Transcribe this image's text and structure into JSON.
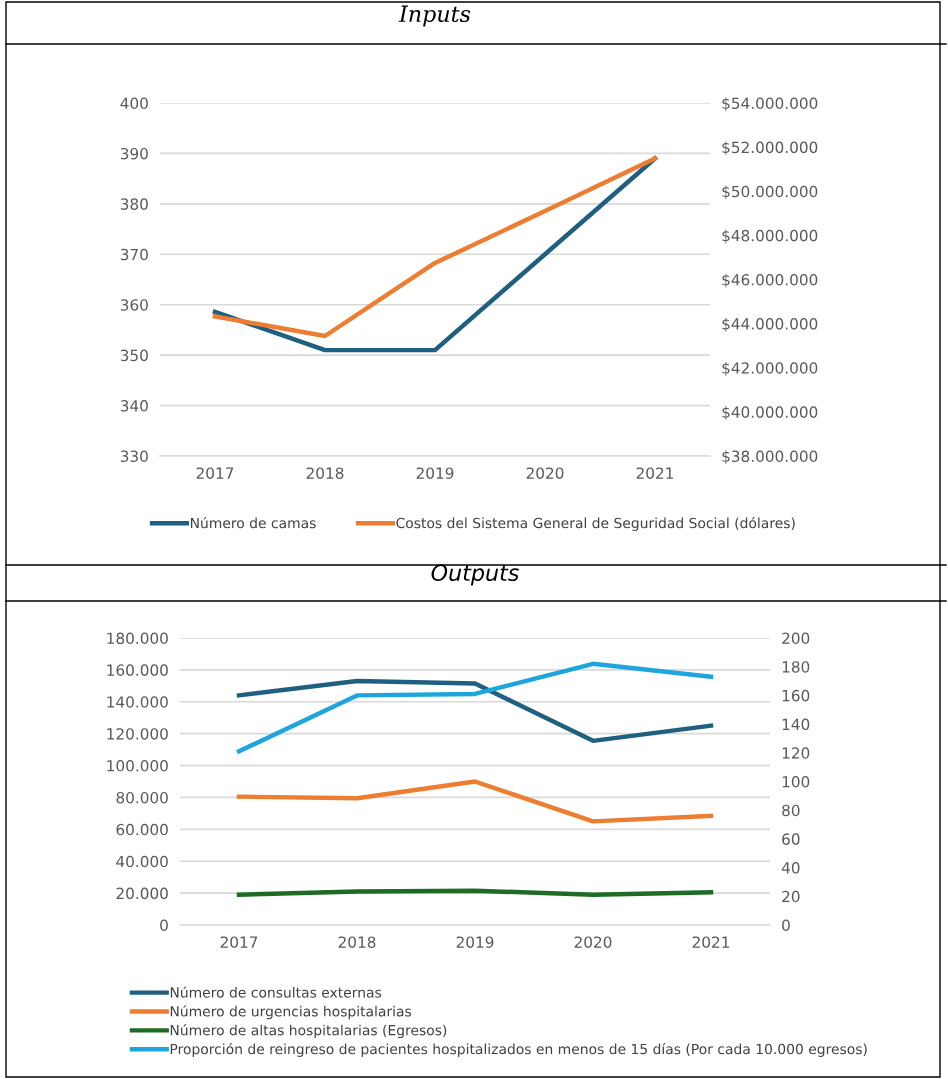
{
  "chart_data": [
    {
      "type": "line",
      "title": "Inputs",
      "categories": [
        "2017",
        "2018",
        "2019",
        "2020",
        "2021"
      ],
      "series": [
        {
          "name": "Número de camas",
          "color": "#1f5f7f",
          "values": [
            358.6,
            351,
            351,
            370,
            389
          ]
        },
        {
          "name": "Costos del Sistema General de Seguridad Social (dólares)",
          "color": "#ed7d31",
          "axis": "y2",
          "values": [
            44330000,
            43440000,
            46750000,
            49100000,
            51490000
          ]
        }
      ],
      "ylim": [
        330,
        400
      ],
      "yticks": [
        330,
        340,
        350,
        360,
        370,
        380,
        390,
        400
      ],
      "y2lim": [
        38000000,
        54000000
      ],
      "y2ticks": [
        {
          "value": 38000000,
          "label": "$38.000.000"
        },
        {
          "value": 40000000,
          "label": "$40.000.000"
        },
        {
          "value": 42000000,
          "label": "$42.000.000"
        },
        {
          "value": 44000000,
          "label": "$44.000.000"
        },
        {
          "value": 46000000,
          "label": "$46.000.000"
        },
        {
          "value": 48000000,
          "label": "$48.000.000"
        },
        {
          "value": 50000000,
          "label": "$50.000.000"
        },
        {
          "value": 52000000,
          "label": "$52.000.000"
        },
        {
          "value": 54000000,
          "label": "$54.000.000"
        }
      ],
      "grid": "y",
      "legend": "bottom",
      "marker": "none",
      "line_style": "solid"
    },
    {
      "type": "line",
      "title": "Outputs",
      "categories": [
        "2017",
        "2018",
        "2019",
        "2020",
        "2021"
      ],
      "series": [
        {
          "name": "Número de consultas externas",
          "color": "#1f5f7f",
          "values": [
            144000,
            153000,
            151500,
            115500,
            125000
          ]
        },
        {
          "name": "Número de urgencias hospitalarias",
          "color": "#ed7d31",
          "values": [
            80500,
            79500,
            90000,
            65000,
            68500
          ]
        },
        {
          "name": "Número de altas hospitalarias (Egresos)",
          "color": "#1e6b24",
          "values": [
            19000,
            21000,
            21500,
            19000,
            20500
          ]
        },
        {
          "name": "Proporción de reingreso de pacientes hospitalizados en menos de 15 días (Por cada 10.000 egresos)",
          "color": "#1ea5dc",
          "axis": "y2",
          "values": [
            121,
            160,
            161,
            182,
            173
          ]
        }
      ],
      "ylim": [
        0,
        180000
      ],
      "yticks": [
        0,
        {
          "value": 20000,
          "label": "20.000"
        },
        {
          "value": 40000,
          "label": "40.000"
        },
        {
          "value": 60000,
          "label": "60.000"
        },
        {
          "value": 80000,
          "label": "80.000"
        },
        {
          "value": 100000,
          "label": "100.000"
        },
        {
          "value": 120000,
          "label": "120.000"
        },
        {
          "value": 140000,
          "label": "140.000"
        },
        {
          "value": 160000,
          "label": "160.000"
        },
        {
          "value": 180000,
          "label": "180.000"
        }
      ],
      "y2lim": [
        0,
        200
      ],
      "y2ticks": [
        0,
        20,
        40,
        60,
        80,
        100,
        120,
        140,
        160,
        180,
        200
      ],
      "grid": "y",
      "legend": "bottom left",
      "marker": "none",
      "line_style": "solid"
    }
  ]
}
